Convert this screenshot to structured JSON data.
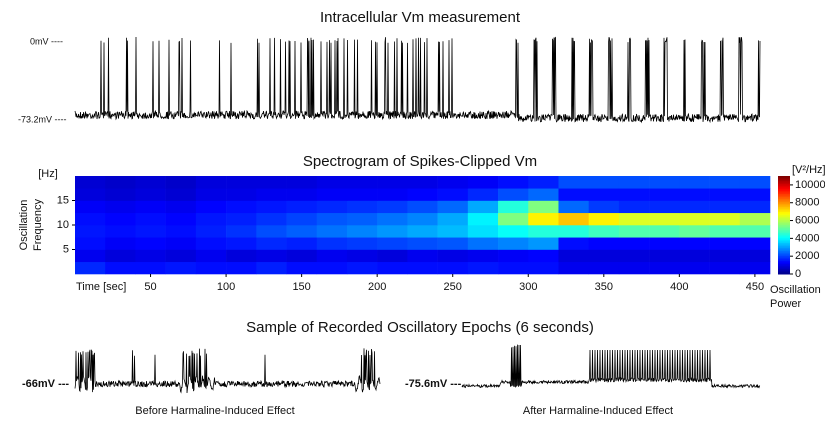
{
  "chart_data": [
    {
      "type": "trace",
      "title": "Intracellular Vm measurement",
      "level_labels": [
        "0mV ----",
        "-73.2mV ----"
      ]
    },
    {
      "type": "heatmap",
      "title": "Spectrogram of Spikes-Clipped Vm",
      "ylabel": [
        "Oscillation",
        "Frequency"
      ],
      "yunit": "[Hz]",
      "xlabel": "Time [sec]",
      "xlim": [
        0,
        460
      ],
      "xticks": [
        50,
        100,
        150,
        200,
        250,
        300,
        350,
        400,
        450
      ],
      "ylim": [
        0,
        20
      ],
      "yticks": [
        5,
        10,
        15
      ],
      "time_bins": [
        0,
        20,
        40,
        60,
        80,
        100,
        120,
        140,
        160,
        180,
        200,
        220,
        240,
        260,
        280,
        300,
        320,
        340,
        360,
        380,
        400,
        420,
        440,
        460
      ],
      "freq_bins": [
        0,
        2.5,
        5,
        7.5,
        10,
        12.5,
        15,
        17.5,
        20
      ],
      "power": [
        [
          1800,
          1500,
          1500,
          1600,
          1500,
          1500,
          1700,
          1500,
          1500,
          1600,
          1500,
          1500,
          1500,
          1600,
          1500,
          1500,
          1200,
          1200,
          1200,
          1200,
          1200,
          1200,
          1200
        ],
        [
          1200,
          1000,
          1100,
          1000,
          1200,
          1000,
          1100,
          1000,
          1200,
          1100,
          1000,
          1200,
          1100,
          1200,
          1300,
          1400,
          1000,
          1000,
          1000,
          1000,
          1000,
          1000,
          1000
        ],
        [
          1500,
          1300,
          1400,
          1300,
          1500,
          1600,
          1800,
          1700,
          1900,
          2000,
          2100,
          2200,
          2300,
          2600,
          2800,
          3000,
          1500,
          1400,
          1400,
          1400,
          1400,
          1400,
          1400
        ],
        [
          1600,
          1500,
          1600,
          1500,
          1700,
          1900,
          2200,
          2400,
          2600,
          2800,
          3000,
          3200,
          3400,
          3800,
          4200,
          4500,
          4500,
          4800,
          5000,
          5000,
          5200,
          5000,
          5000
        ],
        [
          1500,
          1400,
          1500,
          1400,
          1600,
          1700,
          1900,
          2100,
          2300,
          2400,
          2600,
          2800,
          3200,
          4000,
          5500,
          7000,
          7500,
          7000,
          6500,
          6500,
          6500,
          6500,
          6000
        ],
        [
          1300,
          1200,
          1300,
          1200,
          1400,
          1500,
          1600,
          1700,
          1800,
          1900,
          2000,
          2200,
          2500,
          3200,
          4500,
          5500,
          2500,
          2000,
          1800,
          1800,
          1800,
          1800,
          1800
        ],
        [
          1000,
          900,
          1000,
          900,
          1100,
          1100,
          1200,
          1200,
          1300,
          1300,
          1300,
          1400,
          1500,
          1800,
          2200,
          2500,
          1500,
          1500,
          1500,
          1500,
          1500,
          1500,
          1500
        ],
        [
          900,
          800,
          900,
          800,
          1000,
          1000,
          1000,
          1000,
          1100,
          1100,
          1100,
          1100,
          1200,
          1300,
          1500,
          1700,
          2200,
          2200,
          2200,
          2200,
          2200,
          2200,
          2200
        ]
      ],
      "colormap": "jet",
      "colorbar_unit": "[V²/Hz]",
      "colorbar_label": [
        "Oscillation",
        "Power"
      ],
      "colorbar_lim": [
        0,
        11000
      ],
      "colorbar_ticks": [
        0,
        2000,
        4000,
        6000,
        8000,
        10000
      ]
    },
    {
      "type": "trace-samples",
      "title": "Sample of Recorded Oscillatory Epochs (6 seconds)",
      "samples": [
        {
          "level_label": "-66mV ---",
          "caption": "Before Harmaline-Induced Effect"
        },
        {
          "level_label": "-75.6mV ---",
          "caption": "After Harmaline-Induced Effect"
        }
      ]
    }
  ]
}
